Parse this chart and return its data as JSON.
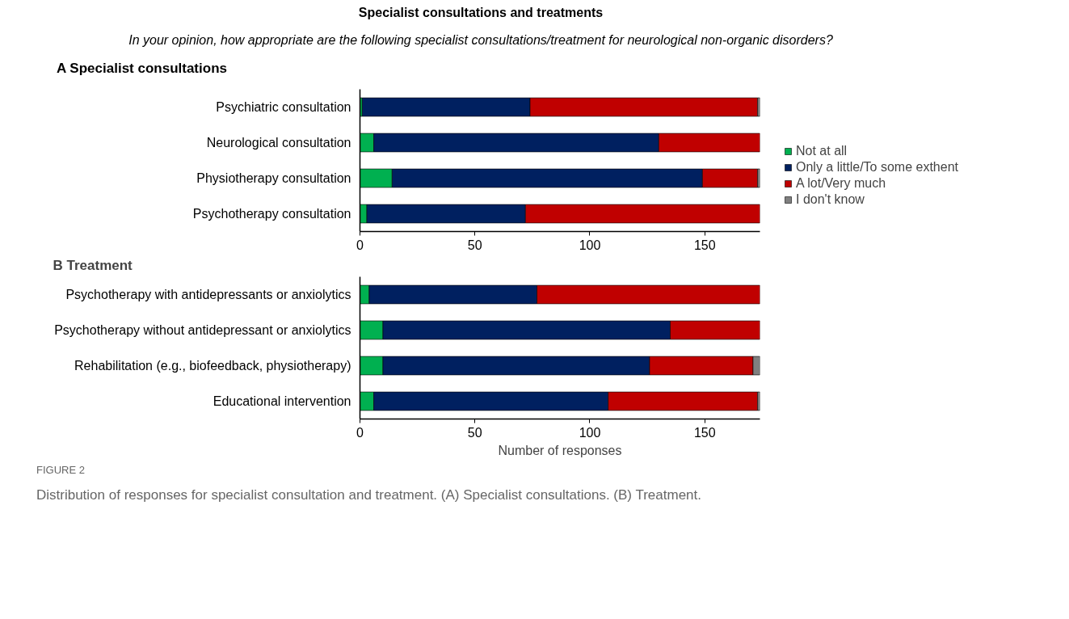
{
  "chart_data": [
    {
      "type": "bar",
      "orientation": "horizontal",
      "stacked": true,
      "title": "Specialist consultations and treatments",
      "subtitle": "In your opinion, how appropriate are the following specialist consultations/treatment for neurological non-organic disorders?",
      "annotations": [
        "A Specialist consultations"
      ],
      "categories": [
        "Psychiatric consultation",
        "Neurological consultation",
        "Physiotherapy consultation",
        "Psychotherapy consultation"
      ],
      "series": [
        {
          "name": "Not at all",
          "color": "#00b050",
          "values": [
            1,
            6,
            14,
            3
          ]
        },
        {
          "name": "Only a little/To some exthent",
          "color": "#002060",
          "values": [
            73,
            124,
            135,
            69
          ]
        },
        {
          "name": "A lot/Very much",
          "color": "#c00000",
          "values": [
            99,
            44,
            24,
            102
          ]
        },
        {
          "name": "I don't know",
          "color": "#808080",
          "values": [
            1,
            null,
            1,
            null
          ]
        }
      ],
      "xlim": [
        0,
        174
      ],
      "xticks": [
        0,
        50,
        100,
        150
      ],
      "grid": false,
      "legend": "right"
    },
    {
      "type": "bar",
      "orientation": "horizontal",
      "stacked": true,
      "title": "B Treatment",
      "xlabel": "Number of responses",
      "annotations": [
        "FIGURE 2",
        "Distribution of responses for specialist consultation and treatment. (A) Specialist consultations. (B) Treatment."
      ],
      "categories": [
        "Psychotherapy with antidepressants or anxiolytics",
        "Psychotherapy without antidepressant or anxiolytics",
        "Rehabilitation (e.g., biofeedback, physiotherapy)",
        "Educational intervention"
      ],
      "series": [
        {
          "color": "#00b050",
          "values": [
            4,
            10,
            10,
            6
          ]
        },
        {
          "color": "#002060",
          "values": [
            73,
            125,
            116,
            102
          ]
        },
        {
          "color": "#c00000",
          "values": [
            97,
            39,
            45,
            65
          ]
        },
        {
          "color": "#808080",
          "values": [
            null,
            null,
            3,
            1
          ]
        }
      ],
      "xlim": [
        0,
        174
      ],
      "xticks": [
        0,
        50,
        100,
        150
      ],
      "grid": false
    }
  ]
}
